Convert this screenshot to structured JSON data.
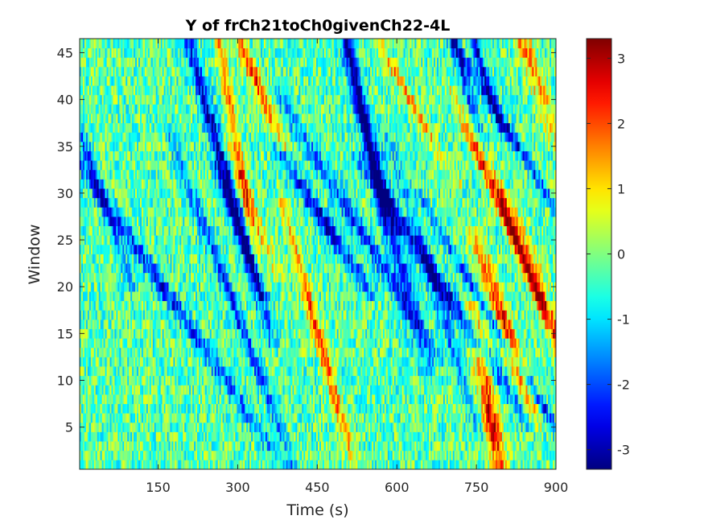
{
  "chart_data": {
    "type": "heatmap",
    "title": "Y of frCh21toCh0givenCh22-4L",
    "xlabel": "Time (s)",
    "ylabel": "Window",
    "xlim": [
      2,
      900
    ],
    "ylim": [
      0.5,
      46.5
    ],
    "x_ticks": [
      150,
      300,
      450,
      600,
      750,
      900
    ],
    "y_ticks": [
      5,
      10,
      15,
      20,
      25,
      30,
      35,
      40,
      45
    ],
    "colormap": "jet",
    "colorbar": {
      "limits": [
        -3.3,
        3.3
      ],
      "ticks": [
        -3,
        -2,
        -1,
        0,
        1,
        2,
        3
      ],
      "tick_labels": [
        "-3",
        "-2",
        "-1",
        "0",
        "1",
        "2",
        "3"
      ]
    },
    "grid": false,
    "n_windows": 46,
    "n_time_bins": 300,
    "value_description": "dense noisy field of values roughly in [-3.3, 3.3] with diagonal streaks"
  }
}
